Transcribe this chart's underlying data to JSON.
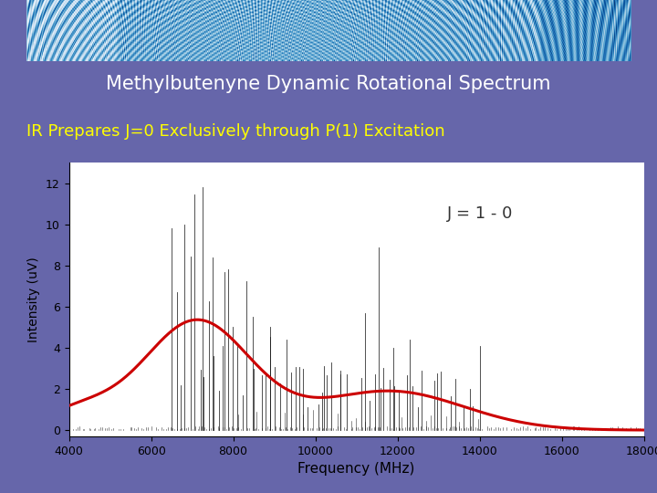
{
  "title1": "Methylbutenyne Dynamic Rotational Spectrum",
  "title2": "IR Prepares J=0 Exclusively through P(1) Excitation",
  "annotation": "J = 1 - 0",
  "xlabel": "Frequency (MHz)",
  "ylabel": "Intensity (uV)",
  "xlim": [
    4000,
    18000
  ],
  "ylim": [
    -0.3,
    13
  ],
  "yticks": [
    0,
    2,
    4,
    6,
    8,
    10,
    12
  ],
  "xticks": [
    4000,
    6000,
    8000,
    10000,
    12000,
    14000,
    16000,
    18000
  ],
  "title1_color": "#ffffff",
  "title2_color": "#ffff00",
  "annotation_color": "#333333",
  "plot_bg": "#ffffff",
  "red_curve_color": "#cc0000",
  "bar_color": "#111111",
  "slide_bg": "#6666aa",
  "stripe_bg": "#ffffff",
  "subtitle_bar_color": "#555588"
}
